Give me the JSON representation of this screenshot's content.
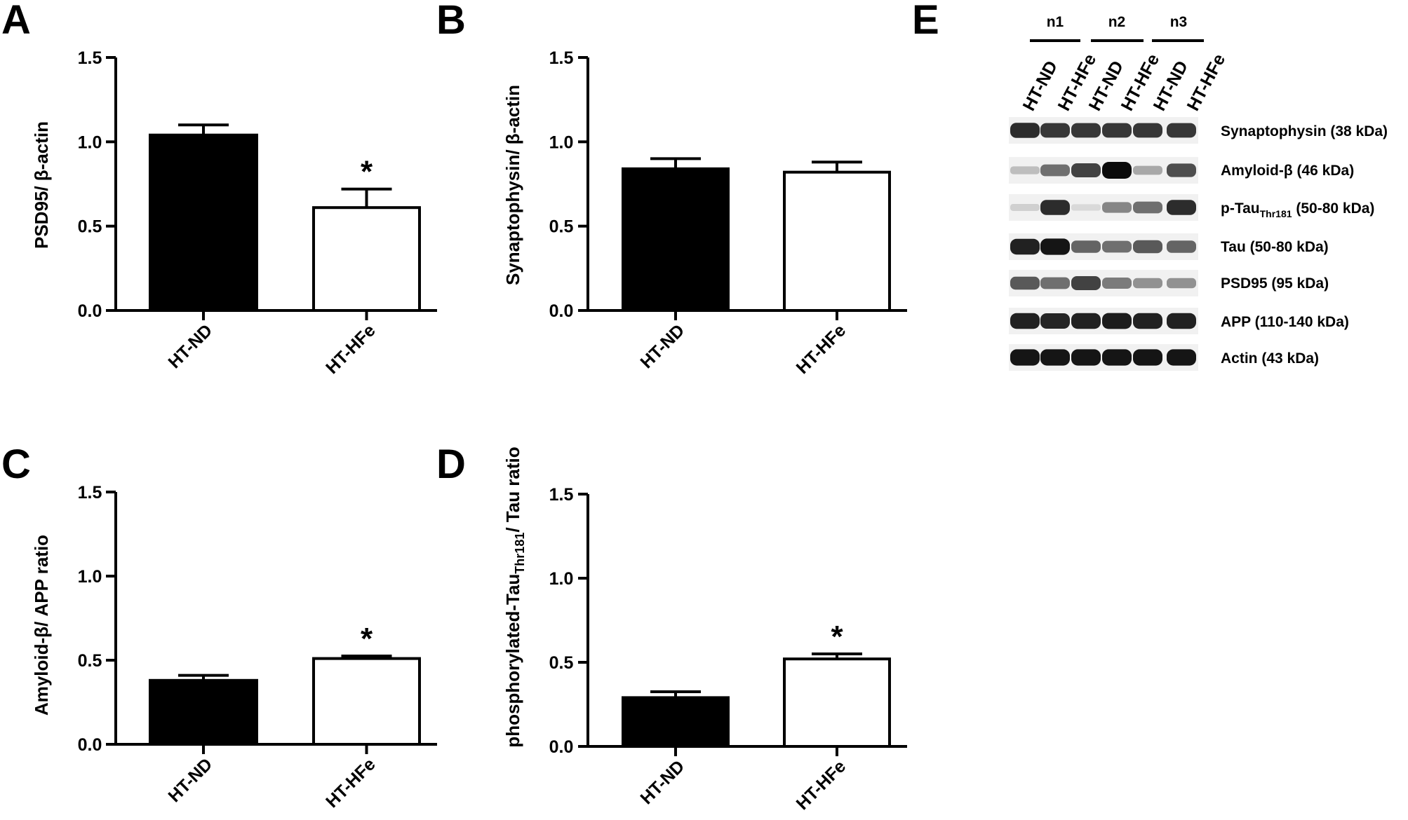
{
  "figure": {
    "panels": [
      {
        "letter": "A",
        "ylabel": "PSD95/ β-actin"
      },
      {
        "letter": "B",
        "ylabel": "Synaptophysin/ β-actin"
      },
      {
        "letter": "C",
        "ylabel": "Amyloid-β/ APP ratio"
      },
      {
        "letter": "D",
        "ylabel_main": "phosphorylated-Tau",
        "ylabel_sub": "Thr181",
        "ylabel_tail": "/ Tau ratio"
      },
      {
        "letter": "E"
      }
    ]
  },
  "chart_data": [
    {
      "panel": "A",
      "type": "bar",
      "categories": [
        "HT-ND",
        "HT-HFe"
      ],
      "values": [
        1.04,
        0.61
      ],
      "error": [
        0.06,
        0.11
      ],
      "significance": [
        "",
        "*"
      ],
      "bar_colors": [
        "#000000",
        "#ffffff"
      ],
      "ylabel": "PSD95/ β-actin",
      "ylim": [
        0,
        1.5
      ],
      "yticks": [
        "0.0",
        "0.5",
        "1.0",
        "1.5"
      ]
    },
    {
      "panel": "B",
      "type": "bar",
      "categories": [
        "HT-ND",
        "HT-HFe"
      ],
      "values": [
        0.84,
        0.82
      ],
      "error": [
        0.06,
        0.06
      ],
      "significance": [
        "",
        ""
      ],
      "bar_colors": [
        "#000000",
        "#ffffff"
      ],
      "ylabel": "Synaptophysin/ β-actin",
      "ylim": [
        0,
        1.5
      ],
      "yticks": [
        "0.0",
        "0.5",
        "1.0",
        "1.5"
      ]
    },
    {
      "panel": "C",
      "type": "bar",
      "categories": [
        "HT-ND",
        "HT-HFe"
      ],
      "values": [
        0.38,
        0.51
      ],
      "error": [
        0.03,
        0.015
      ],
      "significance": [
        "",
        "*"
      ],
      "bar_colors": [
        "#000000",
        "#ffffff"
      ],
      "ylabel": "Amyloid-β/ APP ratio",
      "ylim": [
        0,
        1.5
      ],
      "yticks": [
        "0.0",
        "0.5",
        "1.0",
        "1.5"
      ]
    },
    {
      "panel": "D",
      "type": "bar",
      "categories": [
        "HT-ND",
        "HT-HFe"
      ],
      "values": [
        0.29,
        0.52
      ],
      "error": [
        0.035,
        0.03
      ],
      "significance": [
        "",
        "*"
      ],
      "bar_colors": [
        "#000000",
        "#ffffff"
      ],
      "ylabel": "phosphorylated-TauThr181/ Tau ratio",
      "ylim": [
        0,
        1.5
      ],
      "yticks": [
        "0.0",
        "0.5",
        "1.0",
        "1.5"
      ]
    }
  ],
  "blot": {
    "replicates": [
      "n1",
      "n2",
      "n3"
    ],
    "lanes": [
      "HT-ND",
      "HT-HFe",
      "HT-ND",
      "HT-HFe",
      "HT-ND",
      "HT-HFe"
    ],
    "bands": [
      {
        "label": "Synaptophysin (38 kDa)",
        "intensity": [
          0.85,
          0.8,
          0.8,
          0.8,
          0.8,
          0.8
        ]
      },
      {
        "label": "Amyloid-β (46 kDa)",
        "intensity": [
          0.2,
          0.55,
          0.75,
          1.0,
          0.3,
          0.7
        ]
      },
      {
        "label_main": "p-Tau",
        "label_sub": "Thr181",
        "label_tail": " (50-80 kDa)",
        "intensity": [
          0.12,
          0.85,
          0.08,
          0.45,
          0.55,
          0.85
        ]
      },
      {
        "label": "Tau (50-80 kDa)",
        "intensity": [
          0.9,
          0.95,
          0.6,
          0.55,
          0.65,
          0.6
        ]
      },
      {
        "label": "PSD95 (95 kDa)",
        "intensity": [
          0.65,
          0.55,
          0.75,
          0.5,
          0.4,
          0.4
        ]
      },
      {
        "label": "APP (110-140 kDa)",
        "intensity": [
          0.9,
          0.88,
          0.9,
          0.92,
          0.9,
          0.9
        ]
      },
      {
        "label": "Actin (43 kDa)",
        "intensity": [
          0.95,
          0.95,
          0.95,
          0.95,
          0.95,
          0.95
        ]
      }
    ]
  }
}
